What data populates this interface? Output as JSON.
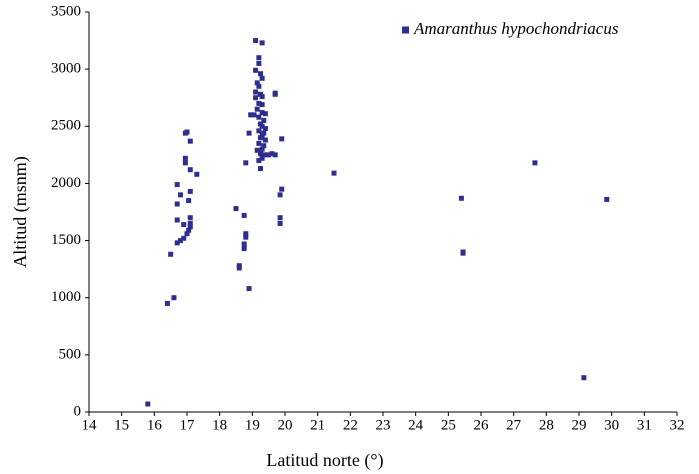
{
  "chart_data": {
    "type": "scatter",
    "xlabel": "Latitud norte (°)",
    "ylabel": "Altitud (msnm)",
    "xlim": [
      14,
      32
    ],
    "xticks": [
      14,
      15,
      16,
      17,
      18,
      19,
      20,
      21,
      22,
      23,
      24,
      25,
      26,
      27,
      28,
      29,
      30,
      31,
      32
    ],
    "ylim": [
      0,
      3500
    ],
    "yticks": [
      0,
      500,
      1000,
      1500,
      2000,
      2500,
      3000,
      3500
    ],
    "legend": "top-right",
    "series": [
      {
        "name": "Amaranthus hypochondriacus",
        "color": "#2e2e8c",
        "x": [
          15.8,
          16.4,
          16.6,
          16.5,
          16.7,
          16.8,
          16.9,
          16.7,
          16.9,
          16.7,
          16.7,
          16.8,
          16.95,
          16.95,
          17.0,
          16.95,
          17.1,
          17.1,
          17.3,
          17.1,
          17.05,
          17.1,
          17.1,
          17.05,
          17.0,
          17.1,
          18.5,
          18.6,
          18.6,
          18.75,
          18.75,
          18.8,
          18.8,
          18.75,
          18.8,
          18.9,
          18.9,
          18.95,
          19.1,
          19.3,
          19.2,
          19.2,
          19.1,
          19.25,
          19.3,
          19.15,
          19.2,
          19.1,
          19.25,
          19.3,
          19.1,
          19.2,
          19.3,
          19.15,
          19.05,
          19.3,
          19.4,
          19.2,
          19.35,
          19.25,
          19.3,
          19.4,
          19.2,
          19.35,
          19.3,
          19.25,
          19.4,
          19.2,
          19.35,
          19.3,
          19.15,
          19.25,
          19.4,
          19.5,
          19.6,
          19.7,
          19.3,
          19.2,
          19.25,
          19.7,
          19.7,
          19.9,
          19.85,
          19.9,
          19.85,
          19.85,
          21.5,
          25.4,
          25.45,
          25.45,
          27.65,
          29.85,
          29.15
        ],
        "values": [
          70,
          950,
          1000,
          1380,
          1480,
          1500,
          1520,
          1680,
          1640,
          1820,
          1990,
          1900,
          2180,
          2220,
          2450,
          2440,
          2370,
          2120,
          2080,
          1930,
          1850,
          1700,
          1650,
          1590,
          1560,
          1620,
          1780,
          1280,
          1260,
          1430,
          1470,
          1530,
          1560,
          1720,
          2180,
          1080,
          2440,
          2600,
          3250,
          3230,
          3100,
          3050,
          2990,
          2960,
          2920,
          2880,
          2850,
          2800,
          2780,
          2760,
          2750,
          2700,
          2690,
          2650,
          2600,
          2620,
          2610,
          2580,
          2550,
          2520,
          2500,
          2480,
          2460,
          2440,
          2420,
          2400,
          2380,
          2350,
          2330,
          2300,
          2290,
          2260,
          2250,
          2250,
          2260,
          2250,
          2220,
          2200,
          2130,
          2790,
          2780,
          2390,
          1900,
          1950,
          1700,
          1650,
          2090,
          1870,
          1400,
          1390,
          2180,
          1860,
          300
        ]
      }
    ]
  }
}
